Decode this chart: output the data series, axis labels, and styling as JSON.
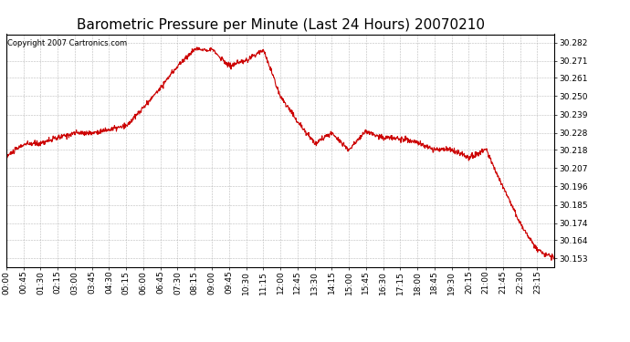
{
  "title": "Barometric Pressure per Minute (Last 24 Hours) 20070210",
  "copyright": "Copyright 2007 Cartronics.com",
  "line_color": "#cc0000",
  "background_color": "#ffffff",
  "plot_bg_color": "#ffffff",
  "grid_color": "#aaaaaa",
  "yticks": [
    30.153,
    30.164,
    30.174,
    30.185,
    30.196,
    30.207,
    30.218,
    30.228,
    30.239,
    30.25,
    30.261,
    30.271,
    30.282
  ],
  "xtick_labels": [
    "00:00",
    "00:45",
    "01:30",
    "02:15",
    "03:00",
    "03:45",
    "04:30",
    "05:15",
    "06:00",
    "06:45",
    "07:30",
    "08:15",
    "09:00",
    "09:45",
    "10:30",
    "11:15",
    "12:00",
    "12:45",
    "13:30",
    "14:15",
    "15:00",
    "15:45",
    "16:30",
    "17:15",
    "18:00",
    "18:45",
    "19:30",
    "20:15",
    "21:00",
    "21:45",
    "22:30",
    "23:15"
  ],
  "ylim": [
    30.148,
    30.287
  ],
  "title_fontsize": 11,
  "tick_fontsize": 6.5,
  "copyright_fontsize": 6,
  "waypoints_t": [
    0,
    45,
    90,
    135,
    180,
    225,
    270,
    315,
    360,
    405,
    450,
    495,
    540,
    585,
    630,
    675,
    720,
    765,
    810,
    855,
    900,
    945,
    990,
    1035,
    1080,
    1125,
    1170,
    1215,
    1260,
    1305,
    1350,
    1395,
    1440
  ],
  "waypoints_v": [
    30.214,
    30.221,
    30.222,
    30.225,
    30.228,
    30.228,
    30.23,
    30.232,
    30.243,
    30.255,
    30.268,
    30.278,
    30.278,
    30.268,
    30.271,
    30.278,
    30.25,
    30.235,
    30.222,
    30.228,
    30.218,
    30.229,
    30.225,
    30.225,
    30.222,
    30.218,
    30.218,
    30.213,
    30.218,
    30.196,
    30.174,
    30.158,
    30.153
  ]
}
